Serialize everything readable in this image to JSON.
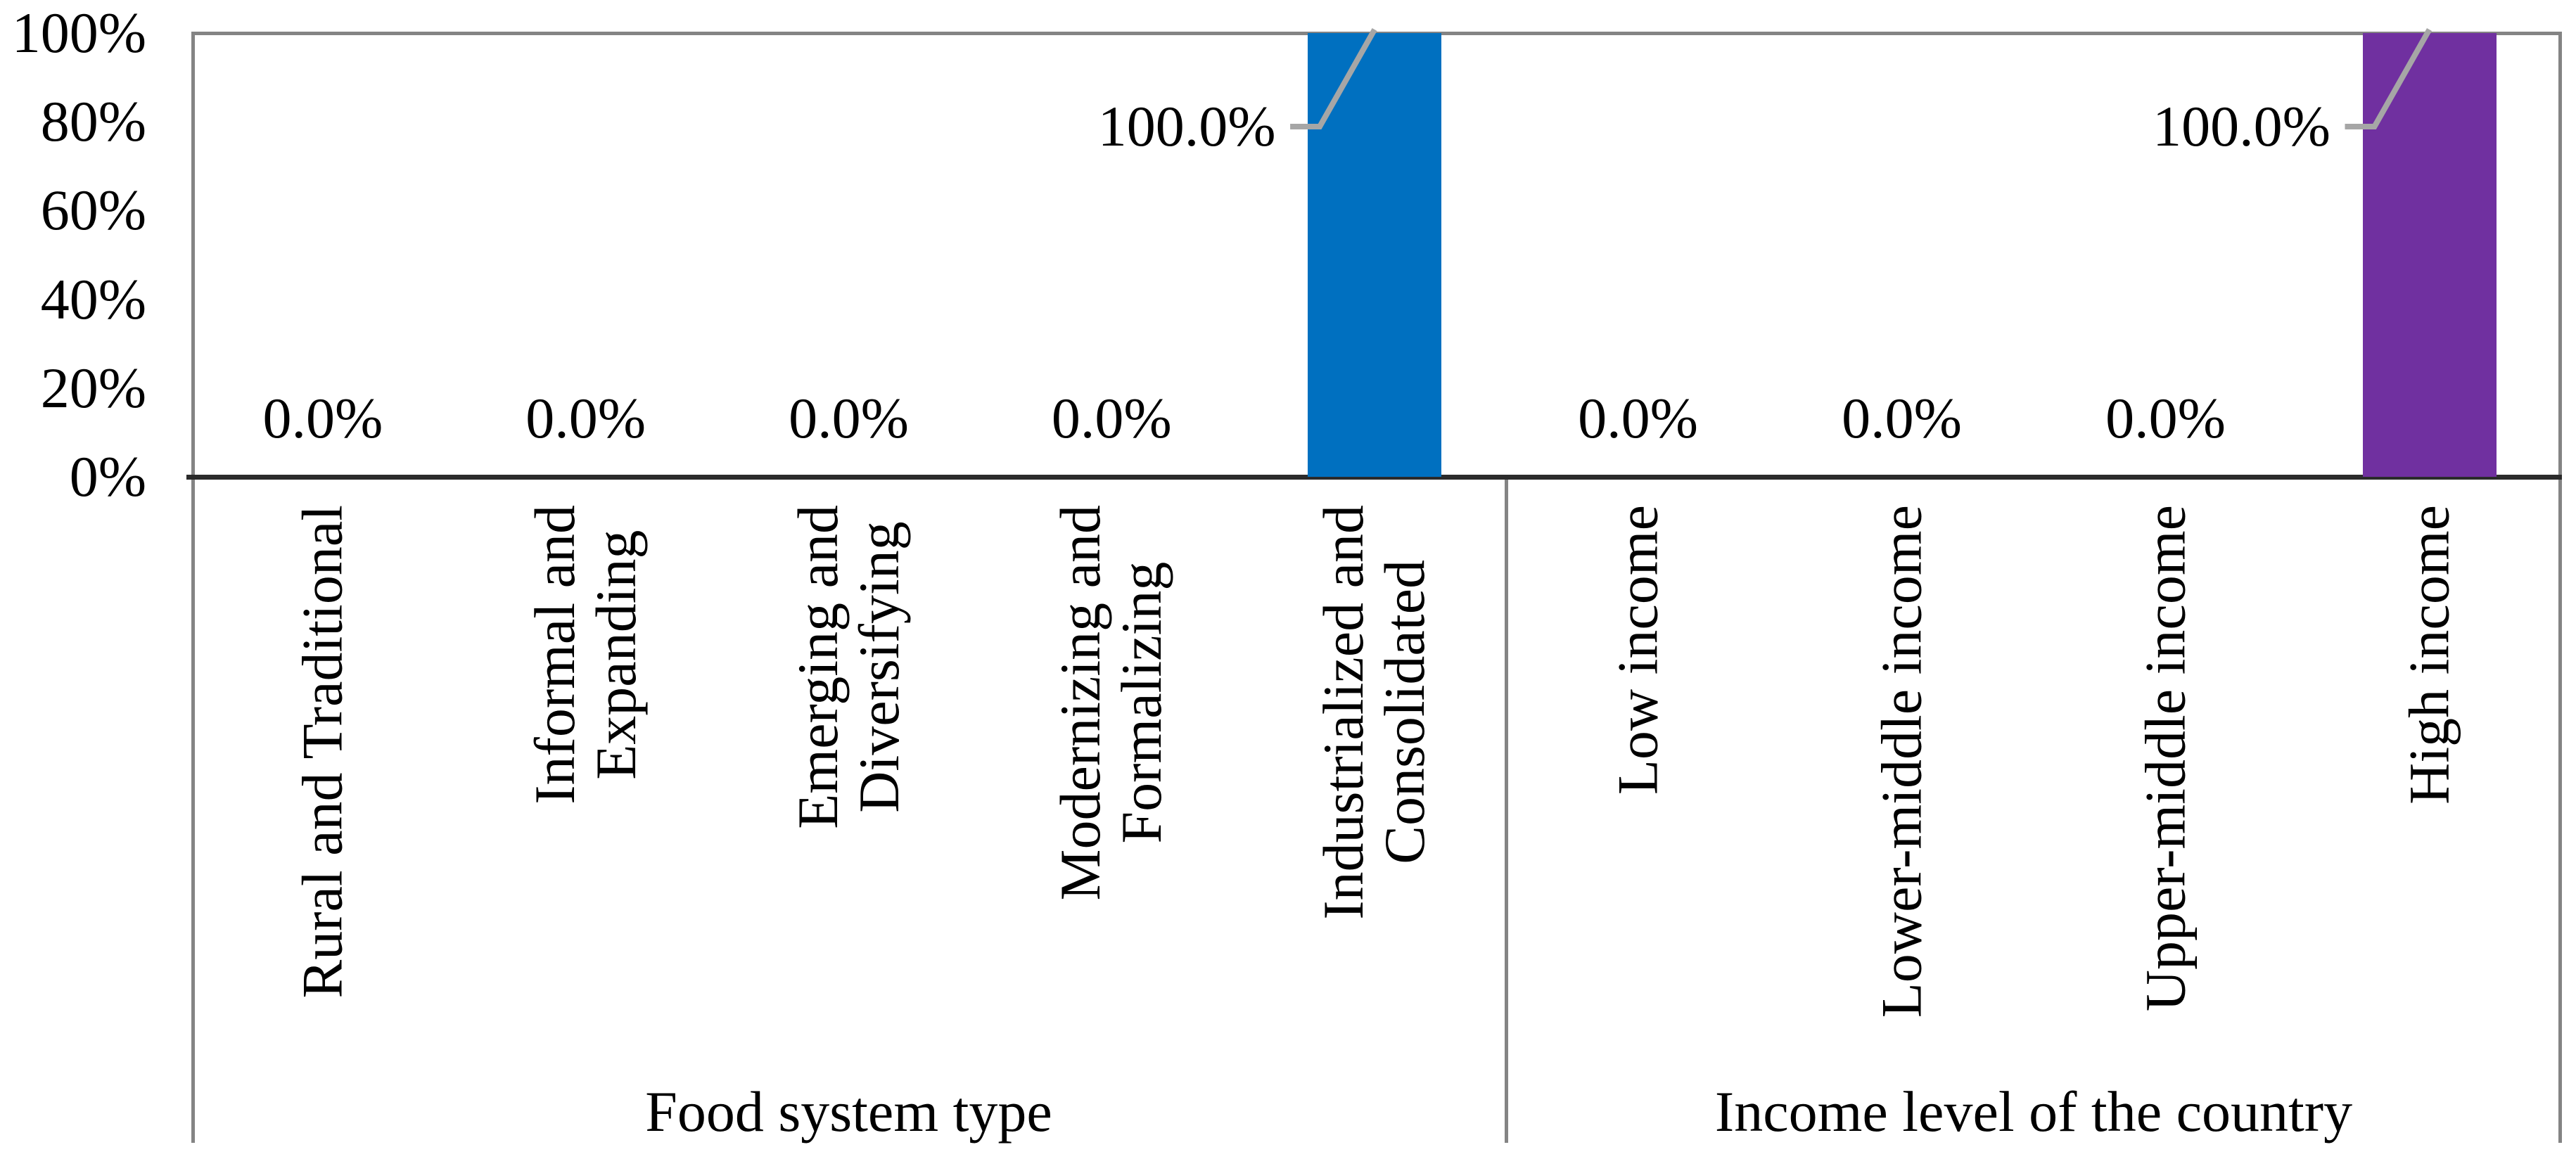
{
  "chart_data": {
    "type": "bar",
    "title": "",
    "y_axis": {
      "ticks": [
        "100%",
        "80%",
        "60%",
        "40%",
        "20%",
        "0%"
      ],
      "range": [
        0,
        100
      ],
      "gridlines": false
    },
    "legend_position": "none",
    "groups": [
      {
        "label": "Food system type",
        "bar_color": "#0070C0",
        "categories": [
          "Rural and Traditional",
          "Informal and\nExpanding",
          "Emerging and\nDiversifying",
          "Modernizing and\nFormalizing",
          "Industrialized and\nConsolidated"
        ],
        "values": [
          0,
          0,
          0,
          0,
          100
        ],
        "data_labels": [
          "0.0%",
          "0.0%",
          "0.0%",
          "0.0%",
          "100.0%"
        ]
      },
      {
        "label": "Income level of the country",
        "bar_color": "#7030A0",
        "categories": [
          "Low income",
          "Lower-middle income",
          "Upper-middle income",
          "High income"
        ],
        "values": [
          0,
          0,
          0,
          100
        ],
        "data_labels": [
          "0.0%",
          "0.0%",
          "0.0%",
          "100.0%"
        ]
      }
    ],
    "colors": {
      "plot_border": "#848484",
      "axis_line": "#2b2b2b",
      "leader_line": "#a6a6a6"
    }
  }
}
